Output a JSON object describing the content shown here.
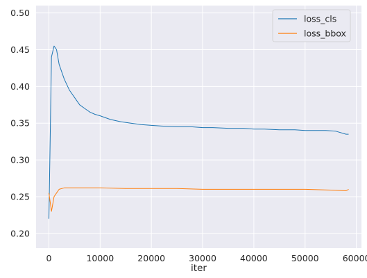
{
  "chart_data": {
    "type": "line",
    "title": "",
    "xlabel": "iter",
    "ylabel": "",
    "xlim": [
      -2500,
      61000
    ],
    "ylim": [
      0.18,
      0.51
    ],
    "x_ticks": [
      0,
      10000,
      20000,
      30000,
      40000,
      50000,
      60000
    ],
    "x_tick_labels": [
      "0",
      "10000",
      "20000",
      "30000",
      "40000",
      "50000",
      "60000"
    ],
    "y_ticks": [
      0.2,
      0.25,
      0.3,
      0.35,
      0.4,
      0.45,
      0.5
    ],
    "y_tick_labels": [
      "0.20",
      "0.25",
      "0.30",
      "0.35",
      "0.40",
      "0.45",
      "0.50"
    ],
    "grid": true,
    "legend_position": "top-right",
    "background_color": "#EAEAF2",
    "series": [
      {
        "name": "loss_cls",
        "color": "#1f77b4",
        "x": [
          0,
          500,
          1000,
          1500,
          2000,
          3000,
          4000,
          5000,
          6000,
          7000,
          8000,
          9000,
          10000,
          12000,
          14000,
          16000,
          18000,
          20000,
          22000,
          25000,
          28000,
          30000,
          32000,
          35000,
          38000,
          40000,
          42000,
          45000,
          48000,
          50000,
          52000,
          54000,
          56000,
          58000,
          58500
        ],
        "values": [
          0.22,
          0.44,
          0.455,
          0.45,
          0.43,
          0.41,
          0.395,
          0.385,
          0.375,
          0.37,
          0.365,
          0.362,
          0.36,
          0.355,
          0.352,
          0.35,
          0.348,
          0.347,
          0.346,
          0.345,
          0.345,
          0.344,
          0.344,
          0.343,
          0.343,
          0.342,
          0.342,
          0.341,
          0.341,
          0.34,
          0.34,
          0.34,
          0.339,
          0.335,
          0.335
        ]
      },
      {
        "name": "loss_bbox",
        "color": "#ff7f0e",
        "x": [
          0,
          500,
          1000,
          1500,
          2000,
          3000,
          5000,
          8000,
          10000,
          15000,
          20000,
          25000,
          30000,
          35000,
          40000,
          45000,
          50000,
          55000,
          58000,
          58500
        ],
        "values": [
          0.255,
          0.23,
          0.25,
          0.255,
          0.26,
          0.262,
          0.262,
          0.262,
          0.262,
          0.261,
          0.261,
          0.261,
          0.26,
          0.26,
          0.26,
          0.26,
          0.26,
          0.259,
          0.258,
          0.26
        ]
      }
    ]
  }
}
